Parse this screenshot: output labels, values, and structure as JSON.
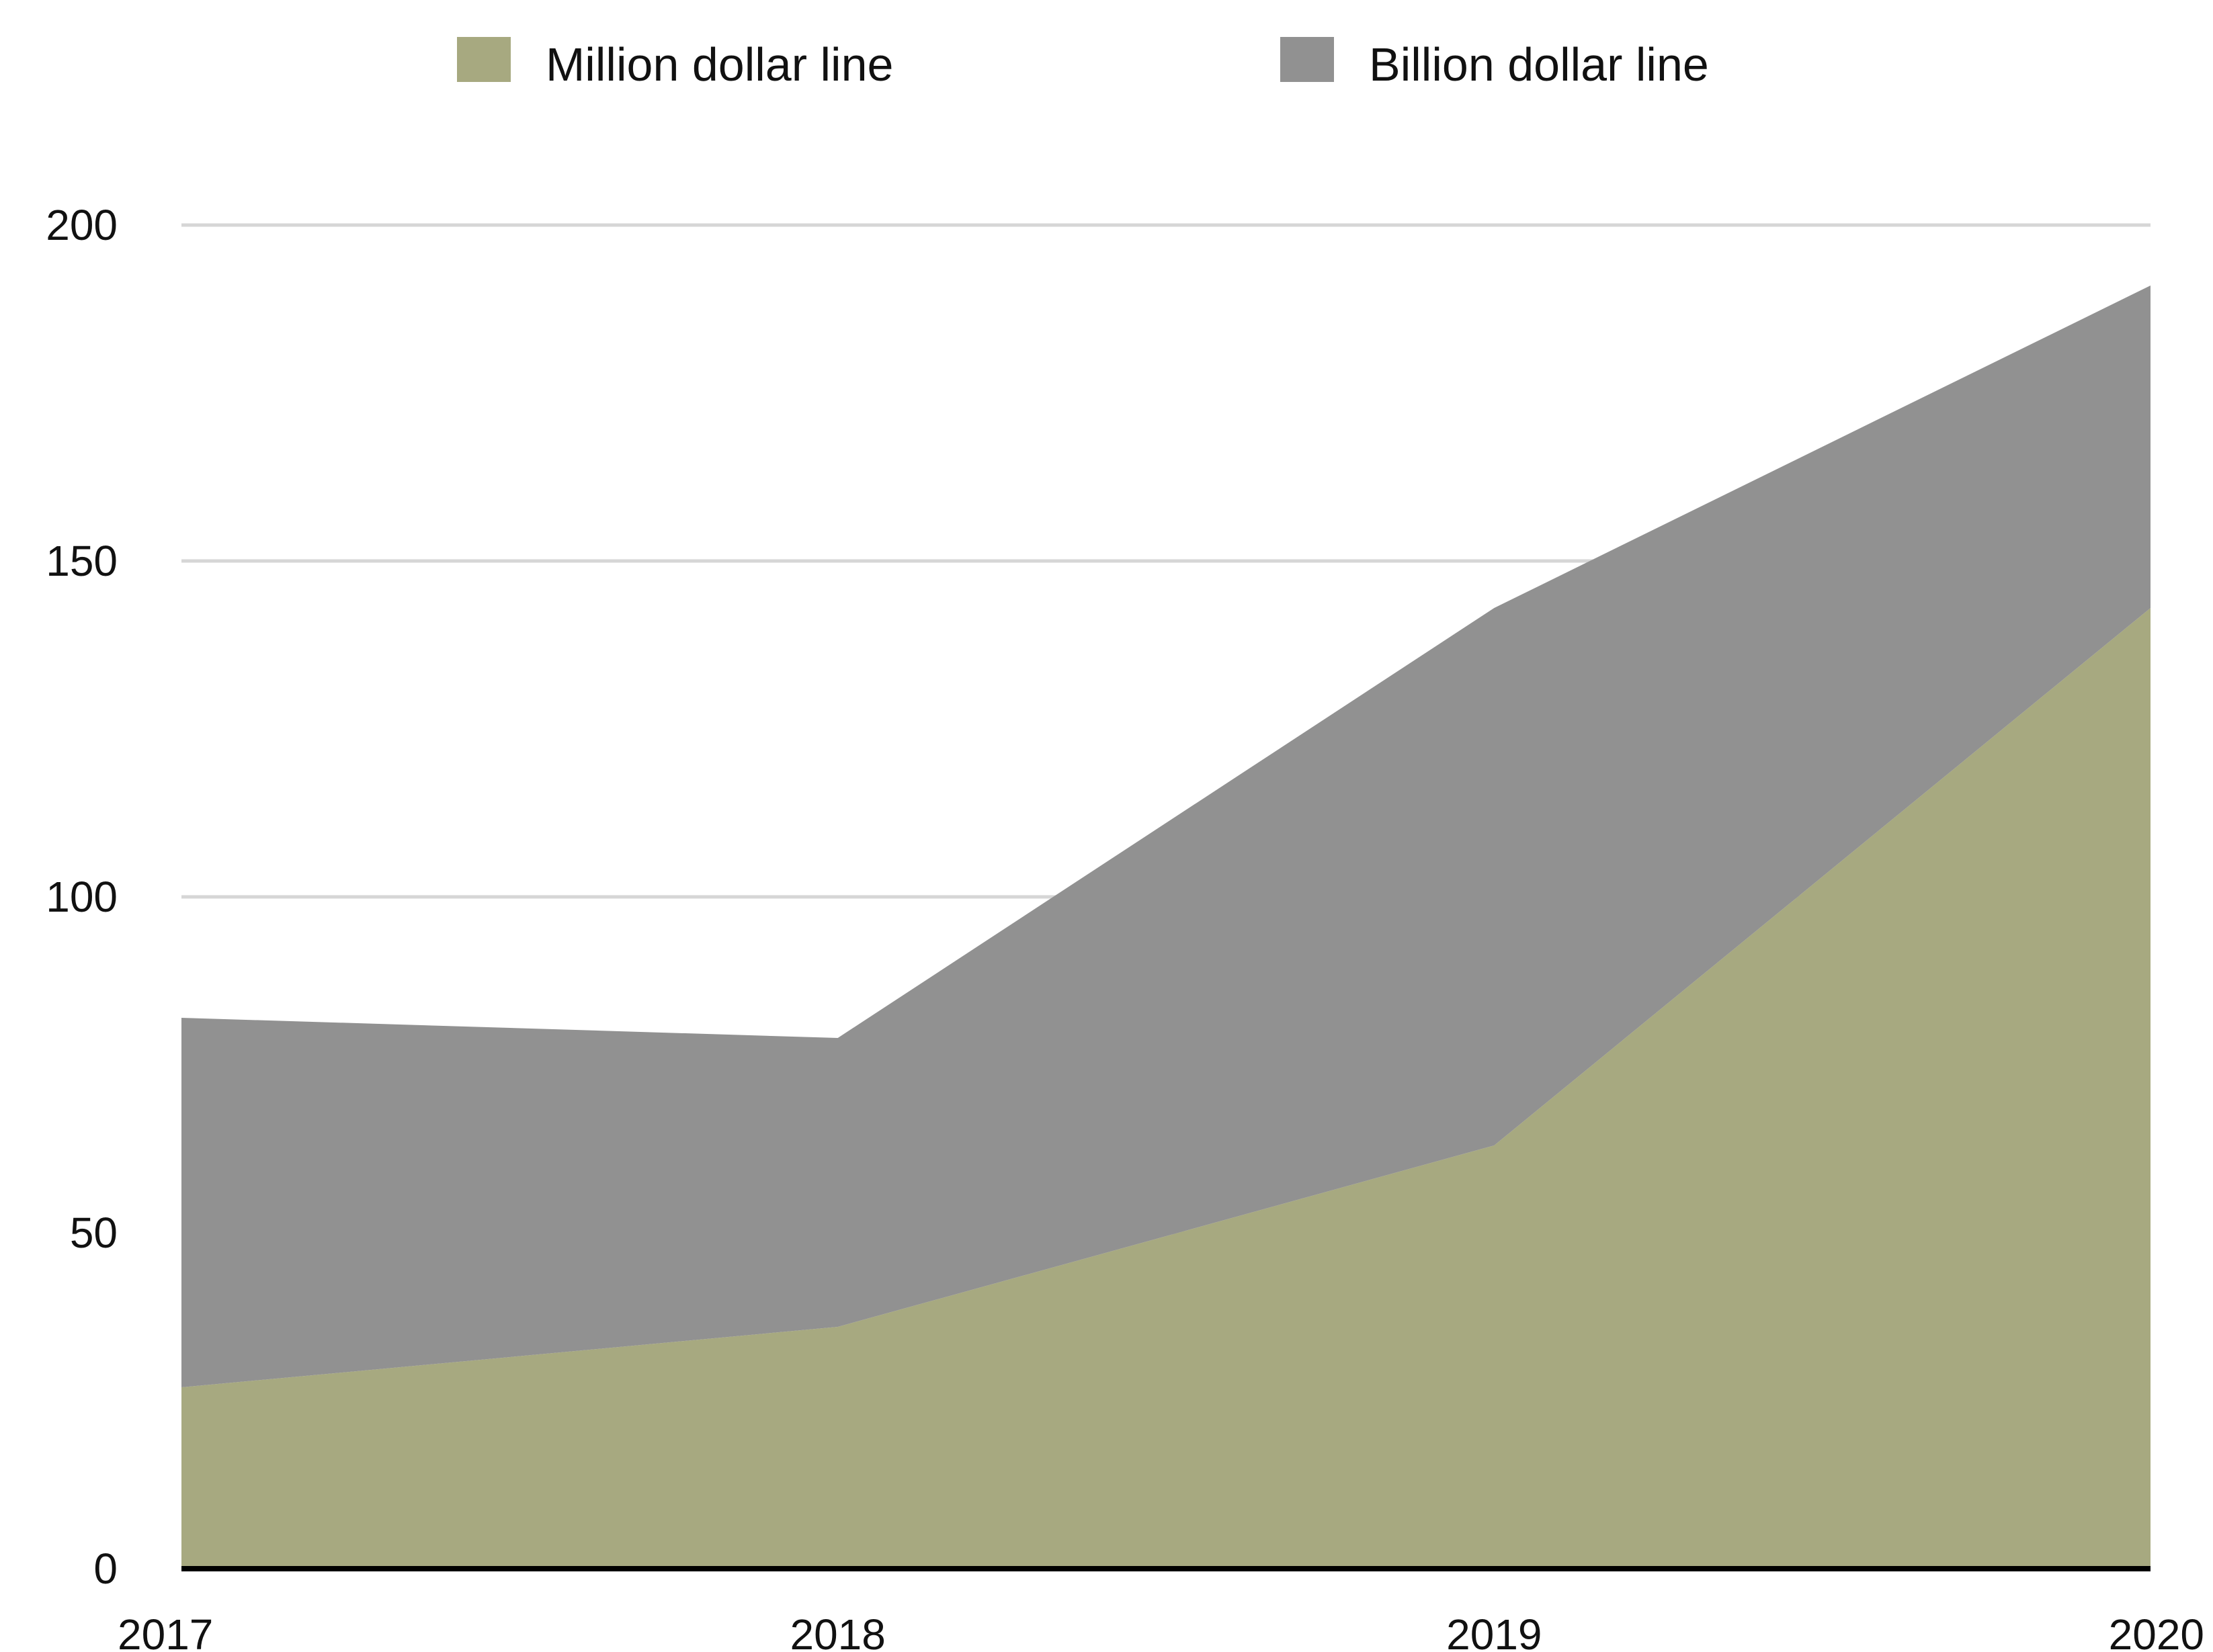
{
  "chart_data": {
    "type": "area",
    "stacked": true,
    "x": [
      "2017",
      "2018",
      "2019",
      "2020"
    ],
    "series": [
      {
        "name": "Million dollar line",
        "values": [
          27,
          36,
          63,
          143
        ],
        "color": "#a7a980"
      },
      {
        "name": "Billion dollar line",
        "values": [
          55,
          43,
          80,
          48
        ],
        "color": "#919191"
      }
    ],
    "ylim": [
      0,
      200
    ],
    "yticks": [
      0,
      50,
      100,
      150,
      200
    ],
    "grid": true,
    "legend_position": "top",
    "title": "",
    "xlabel": "",
    "ylabel": ""
  }
}
